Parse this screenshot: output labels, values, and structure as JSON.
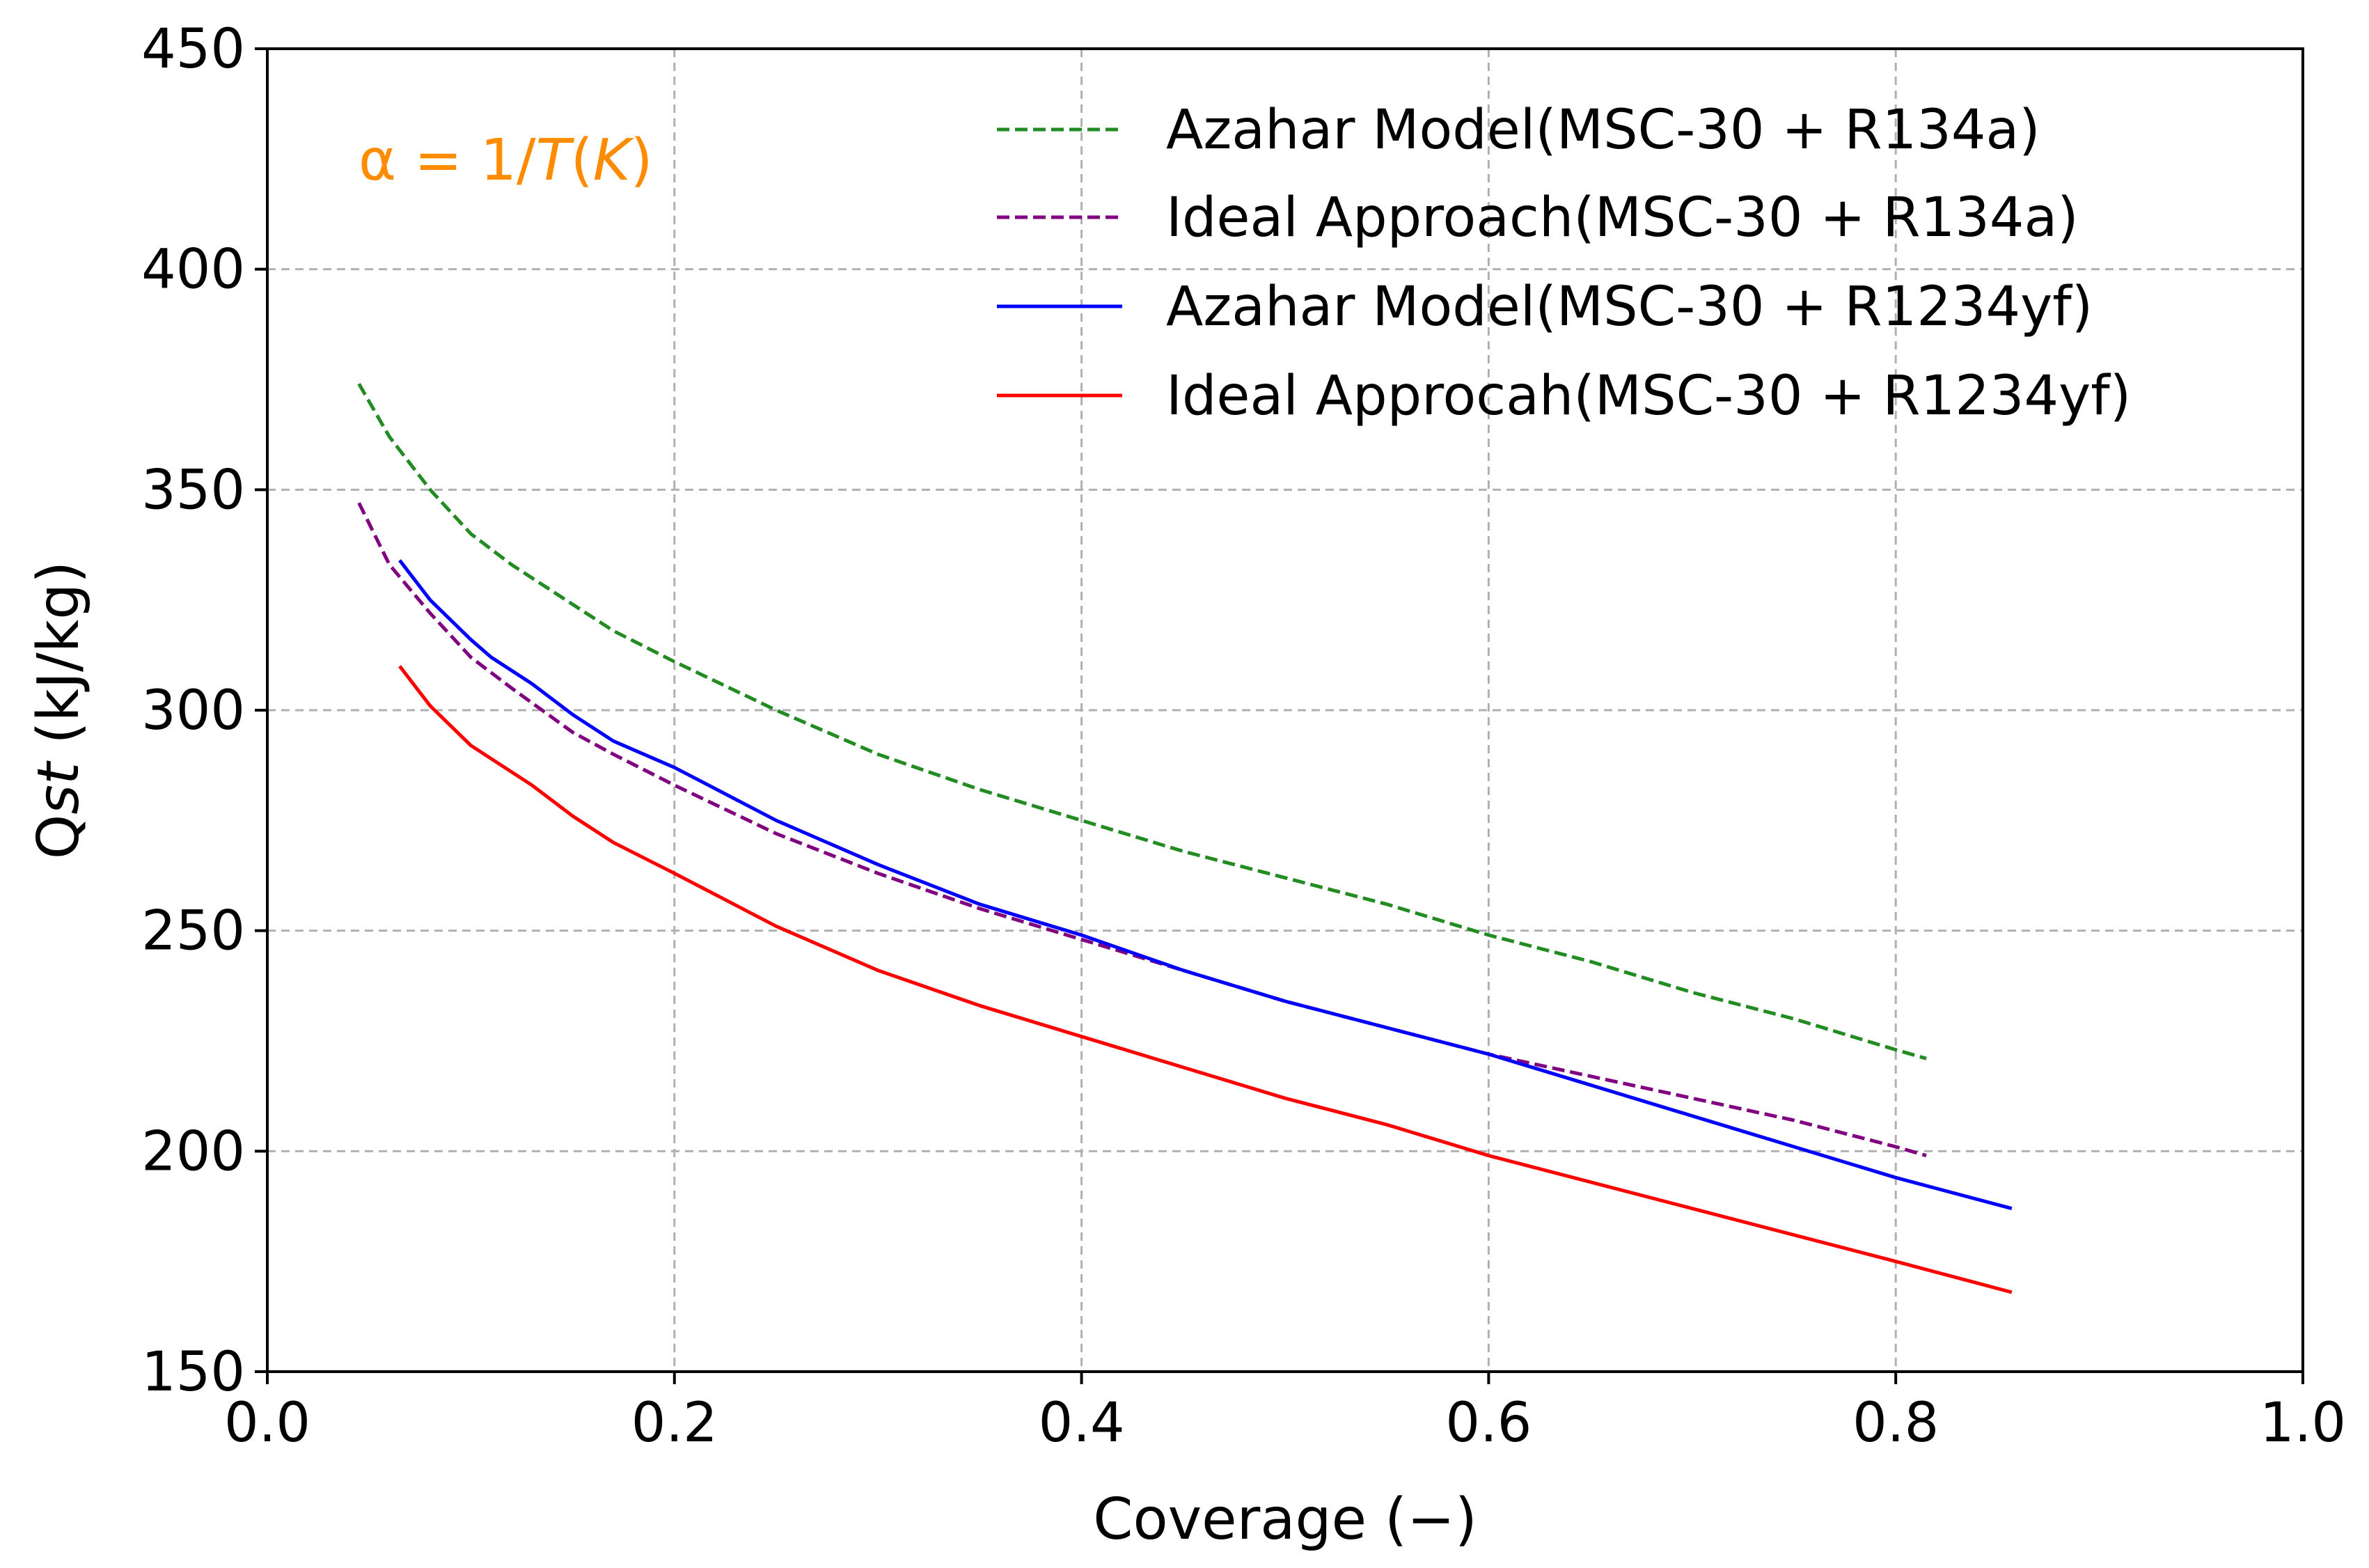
{
  "chart_data": {
    "type": "line",
    "title": "",
    "xlabel": "Coverage (−)",
    "ylabel_main": "Q",
    "ylabel_italic": "st",
    "ylabel_unit": " (kJ/kg)",
    "xlim": [
      0.0,
      1.0
    ],
    "ylim": [
      150,
      450
    ],
    "xticks": [
      0.0,
      0.2,
      0.4,
      0.6,
      0.8,
      1.0
    ],
    "xtick_labels": [
      "0.0",
      "0.2",
      "0.4",
      "0.6",
      "0.8",
      "1.0"
    ],
    "yticks": [
      150,
      200,
      250,
      300,
      350,
      400,
      450
    ],
    "ytick_labels": [
      "150",
      "200",
      "250",
      "300",
      "350",
      "400",
      "450"
    ],
    "grid": true,
    "legend_position": "top-right",
    "annotation": {
      "text_prefix": "α = 1/",
      "text_italic_T": "T",
      "text_paren_open": "(",
      "text_italic_K": "K",
      "text_paren_close": ")",
      "color": "#ff8c00"
    },
    "series": [
      {
        "name": "Azahar Model(MSC-30 + R134a)",
        "color": "#228b22",
        "dashed": true,
        "x": [
          0.045,
          0.06,
          0.08,
          0.1,
          0.12,
          0.15,
          0.17,
          0.2,
          0.25,
          0.3,
          0.35,
          0.4,
          0.45,
          0.5,
          0.55,
          0.6,
          0.65,
          0.7,
          0.75,
          0.8,
          0.815
        ],
        "y": [
          374,
          362,
          350,
          340,
          333,
          324,
          318,
          311,
          300,
          290,
          282,
          275,
          268,
          262,
          256,
          249,
          243,
          236,
          230,
          223,
          221
        ]
      },
      {
        "name": "Ideal Approach(MSC-30 + R134a)",
        "color": "#800080",
        "dashed": true,
        "x": [
          0.045,
          0.06,
          0.08,
          0.1,
          0.12,
          0.15,
          0.17,
          0.2,
          0.25,
          0.3,
          0.35,
          0.4,
          0.45,
          0.5,
          0.55,
          0.6,
          0.65,
          0.7,
          0.75,
          0.8,
          0.815
        ],
        "y": [
          347,
          333,
          322,
          312,
          305,
          295,
          290,
          283,
          272,
          263,
          255,
          248,
          241,
          234,
          228,
          222,
          217,
          212,
          207,
          201,
          199
        ]
      },
      {
        "name": "Azahar Model(MSC-30 + R1234yf)",
        "color": "#0000ff",
        "dashed": false,
        "x": [
          0.065,
          0.08,
          0.1,
          0.11,
          0.13,
          0.15,
          0.17,
          0.2,
          0.25,
          0.3,
          0.35,
          0.4,
          0.45,
          0.5,
          0.55,
          0.6,
          0.65,
          0.7,
          0.75,
          0.8,
          0.857
        ],
        "y": [
          334,
          325,
          316,
          312,
          306,
          299,
          293,
          287,
          275,
          265,
          256,
          249,
          241,
          234,
          228,
          222,
          215,
          208,
          201,
          194,
          187
        ]
      },
      {
        "name": "Ideal Approcah(MSC-30 + R1234yf)",
        "color": "#ff0000",
        "dashed": false,
        "x": [
          0.065,
          0.08,
          0.1,
          0.11,
          0.13,
          0.15,
          0.17,
          0.2,
          0.25,
          0.3,
          0.35,
          0.4,
          0.45,
          0.5,
          0.55,
          0.6,
          0.65,
          0.7,
          0.75,
          0.8,
          0.857
        ],
        "y": [
          310,
          301,
          292,
          289,
          283,
          276,
          270,
          263,
          251,
          241,
          233,
          226,
          219,
          212,
          206,
          199,
          193,
          187,
          181,
          175,
          168
        ]
      }
    ]
  }
}
